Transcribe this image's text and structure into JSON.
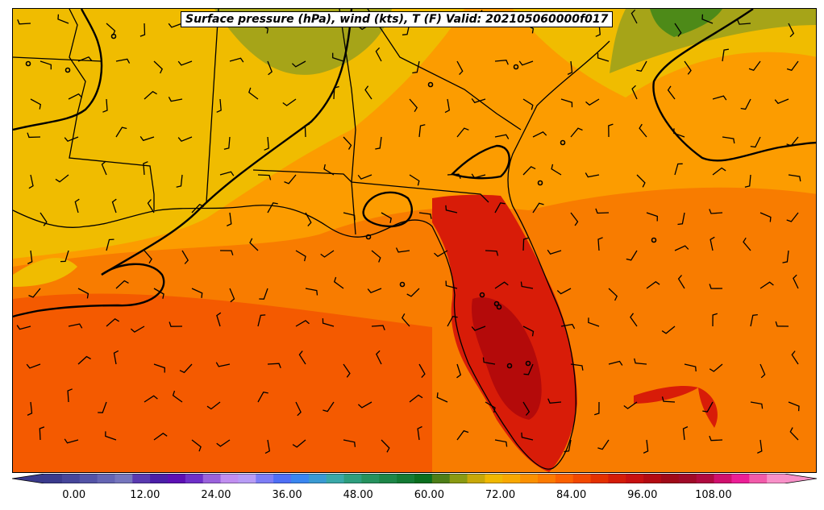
{
  "title": "Surface pressure (hPa), wind (kts), T (F) Valid: 202105060000f017",
  "colorbar": {
    "tick_labels": [
      "0.00",
      "12.00",
      "24.00",
      "36.00",
      "48.00",
      "60.00",
      "72.00",
      "84.00",
      "96.00",
      "108.00"
    ],
    "colors": [
      "#3a3a8c",
      "#46469a",
      "#5353a6",
      "#6565b3",
      "#7676bd",
      "#5a3ab0",
      "#4b1fa8",
      "#5c10b4",
      "#6e30c8",
      "#9a62dc",
      "#c08ef0",
      "#b89cf5",
      "#7d7df5",
      "#4f6ff5",
      "#3a86f0",
      "#3a9ad2",
      "#3aa8a8",
      "#2e9e7e",
      "#26925e",
      "#1d8648",
      "#137a34",
      "#0a6e1e",
      "#4d7e18",
      "#8a9a12",
      "#c8a808",
      "#f0b800",
      "#f8a800",
      "#fb9000",
      "#fc7a00",
      "#fb6000",
      "#f24800",
      "#e43000",
      "#d41c08",
      "#c81010",
      "#b40a12",
      "#a00a18",
      "#a00a28",
      "#b00a40",
      "#d0106e",
      "#ec1e96",
      "#f25aaa",
      "#f890c8"
    ],
    "range": [
      -5,
      120
    ],
    "tick_values": [
      0,
      12,
      24,
      36,
      48,
      60,
      72,
      84,
      96,
      108
    ]
  },
  "map": {
    "region": "Southeastern United States and Florida",
    "fill_colors": {
      "cool_north": "#4d8a18",
      "olive": "#a6a418",
      "yellow": "#f0bc00",
      "orange": "#fc9c00",
      "dark_orange": "#f87c00",
      "red_orange": "#f45a00",
      "red": "#d81c08",
      "dark_red": "#b40a0a"
    }
  }
}
